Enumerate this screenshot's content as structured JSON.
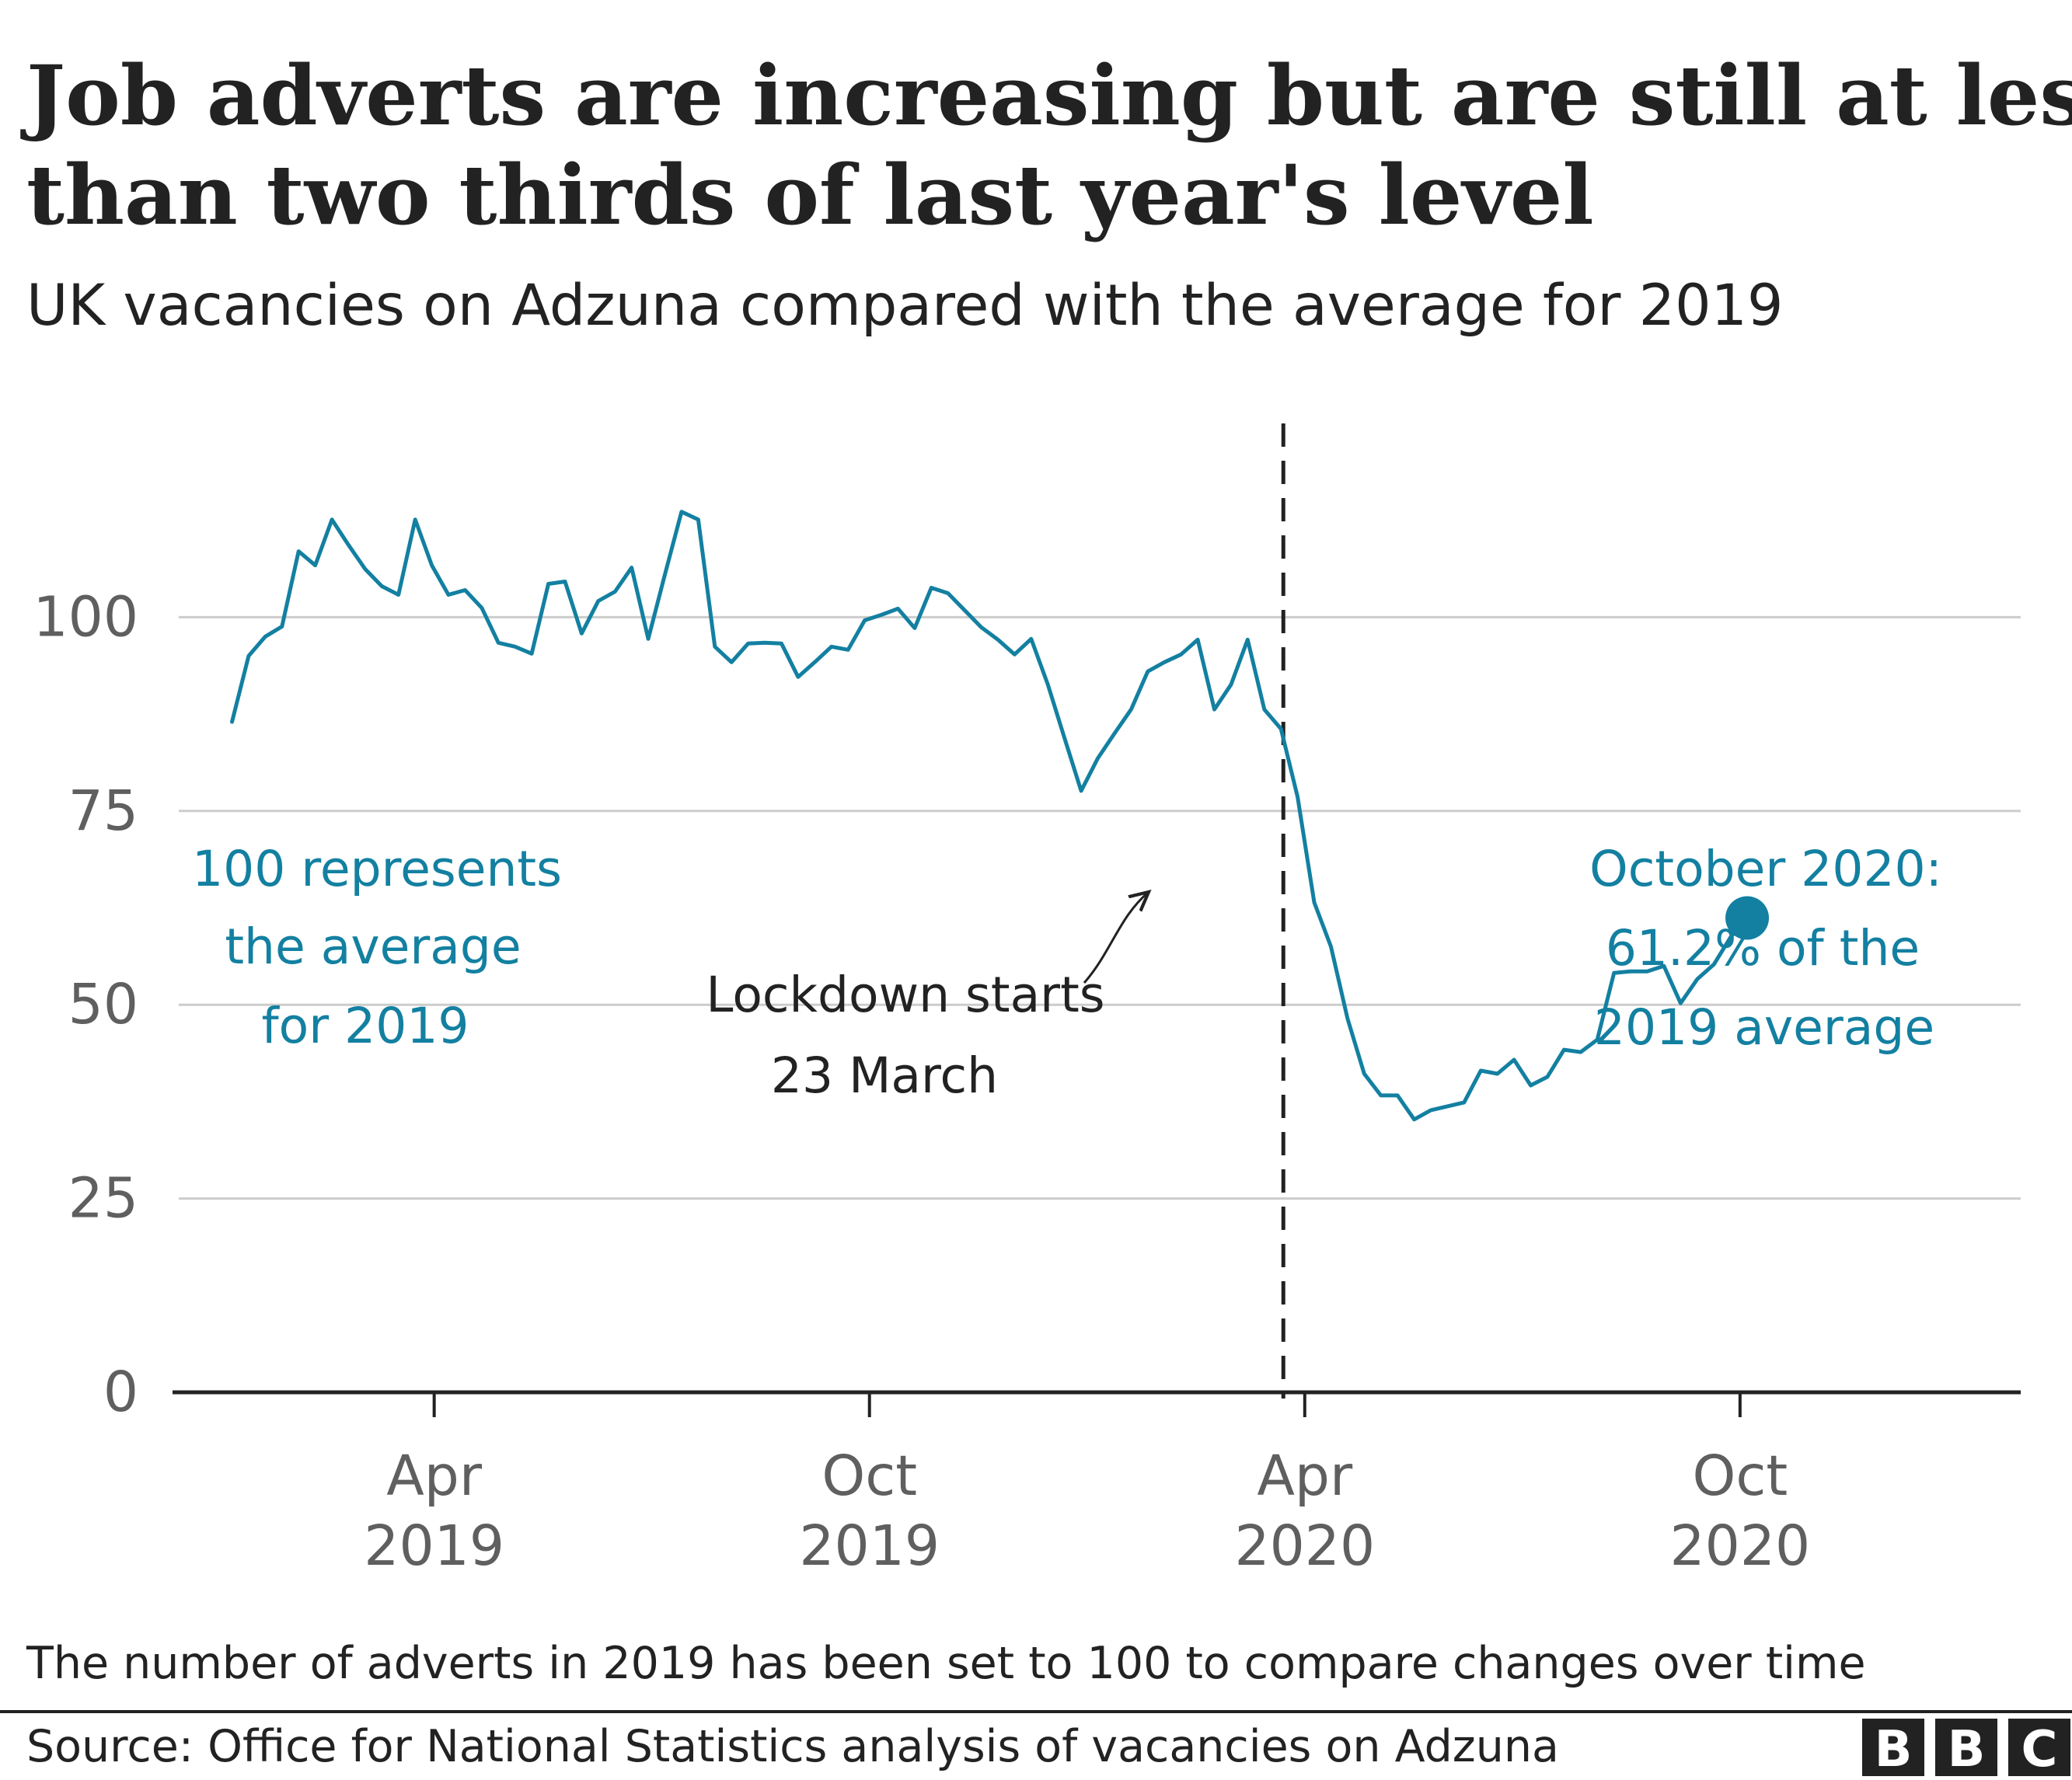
{
  "title_lines": [
    "Job adverts are increasing but are still at less",
    "than two thirds of last year's level"
  ],
  "subtitle": "UK vacancies on Adzuna compared with the average for 2019",
  "note": "The number of adverts in 2019 has been set to 100 to compare changes over time",
  "source": "Source: Office for National Statistics analysis of vacancies on Adzuna",
  "logo": [
    "B",
    "B",
    "C"
  ],
  "colors": {
    "line": "#1380a1",
    "grid": "#cccccc",
    "text": "#222222",
    "tick": "#5f5f5f"
  },
  "annotations": {
    "left": [
      "100 represents",
      "the average",
      "for 2019"
    ],
    "lockdown": [
      "Lockdown starts",
      "23 March"
    ],
    "right": [
      "October 2020:",
      "61.2% of the",
      "2019 average"
    ]
  },
  "chart_data": {
    "type": "line",
    "title": "Job adverts are increasing but are still at less than two thirds of last year's level",
    "subtitle": "UK vacancies on Adzuna compared with the average for 2019",
    "xlabel": "",
    "ylabel": "",
    "ylim": [
      0,
      125
    ],
    "yticks": [
      0,
      25,
      50,
      75,
      100
    ],
    "grid": true,
    "legend": "none",
    "xlim": [
      "2018-12-12",
      "2021-01-27"
    ],
    "xticks": [
      {
        "date": "2019-04-01",
        "label": [
          "Apr",
          "2019"
        ]
      },
      {
        "date": "2019-10-01",
        "label": [
          "Oct",
          "2019"
        ]
      },
      {
        "date": "2020-04-01",
        "label": [
          "Apr",
          "2020"
        ]
      },
      {
        "date": "2020-10-01",
        "label": [
          "Oct",
          "2020"
        ]
      }
    ],
    "lockdown_date": "2020-03-23",
    "series": [
      {
        "values": [
          {
            "x": "2019-01-06",
            "y": 86.5
          },
          {
            "x": "2019-01-13",
            "y": 95
          },
          {
            "x": "2019-01-20",
            "y": 97.5
          },
          {
            "x": "2019-01-27",
            "y": 98.8
          },
          {
            "x": "2019-02-03",
            "y": 108.5
          },
          {
            "x": "2019-02-10",
            "y": 106.7
          },
          {
            "x": "2019-02-17",
            "y": 112.6
          },
          {
            "x": "2019-02-24",
            "y": 109.3
          },
          {
            "x": "2019-03-03",
            "y": 106.2
          },
          {
            "x": "2019-03-10",
            "y": 104
          },
          {
            "x": "2019-03-17",
            "y": 102.9
          },
          {
            "x": "2019-03-24",
            "y": 112.6
          },
          {
            "x": "2019-03-31",
            "y": 106.7
          },
          {
            "x": "2019-04-07",
            "y": 102.9
          },
          {
            "x": "2019-04-14",
            "y": 103.5
          },
          {
            "x": "2019-04-21",
            "y": 101.2
          },
          {
            "x": "2019-04-28",
            "y": 96.7
          },
          {
            "x": "2019-05-05",
            "y": 96.2
          },
          {
            "x": "2019-05-12",
            "y": 95.3
          },
          {
            "x": "2019-05-19",
            "y": 104.3
          },
          {
            "x": "2019-05-26",
            "y": 104.6
          },
          {
            "x": "2019-06-02",
            "y": 97.9
          },
          {
            "x": "2019-06-09",
            "y": 102.1
          },
          {
            "x": "2019-06-16",
            "y": 103.3
          },
          {
            "x": "2019-06-23",
            "y": 106.4
          },
          {
            "x": "2019-06-30",
            "y": 97.2
          },
          {
            "x": "2019-07-07",
            "y": 105.5
          },
          {
            "x": "2019-07-14",
            "y": 113.6
          },
          {
            "x": "2019-07-21",
            "y": 112.6
          },
          {
            "x": "2019-07-28",
            "y": 96.2
          },
          {
            "x": "2019-08-04",
            "y": 94.2
          },
          {
            "x": "2019-08-11",
            "y": 96.6
          },
          {
            "x": "2019-08-18",
            "y": 96.7
          },
          {
            "x": "2019-08-25",
            "y": 96.6
          },
          {
            "x": "2019-09-01",
            "y": 92.3
          },
          {
            "x": "2019-09-08",
            "y": 94.2
          },
          {
            "x": "2019-09-15",
            "y": 96.2
          },
          {
            "x": "2019-09-22",
            "y": 95.8
          },
          {
            "x": "2019-09-29",
            "y": 99.6
          },
          {
            "x": "2019-10-06",
            "y": 100.3
          },
          {
            "x": "2019-10-13",
            "y": 101.1
          },
          {
            "x": "2019-10-20",
            "y": 98.6
          },
          {
            "x": "2019-10-27",
            "y": 103.8
          },
          {
            "x": "2019-11-03",
            "y": 103.1
          },
          {
            "x": "2019-11-10",
            "y": 100.9
          },
          {
            "x": "2019-11-17",
            "y": 98.7
          },
          {
            "x": "2019-11-24",
            "y": 97.1
          },
          {
            "x": "2019-12-01",
            "y": 95.2
          },
          {
            "x": "2019-12-08",
            "y": 97.2
          },
          {
            "x": "2019-12-15",
            "y": 91.3
          },
          {
            "x": "2019-12-22",
            "y": 84.4
          },
          {
            "x": "2019-12-29",
            "y": 77.6
          },
          {
            "x": "2020-01-05",
            "y": 81.8
          },
          {
            "x": "2020-01-12",
            "y": 85
          },
          {
            "x": "2020-01-19",
            "y": 88.1
          },
          {
            "x": "2020-01-26",
            "y": 93
          },
          {
            "x": "2020-02-02",
            "y": 94.2
          },
          {
            "x": "2020-02-09",
            "y": 95.2
          },
          {
            "x": "2020-02-16",
            "y": 97.1
          },
          {
            "x": "2020-02-23",
            "y": 88.1
          },
          {
            "x": "2020-03-01",
            "y": 91.3
          },
          {
            "x": "2020-03-08",
            "y": 97.1
          },
          {
            "x": "2020-03-15",
            "y": 88.1
          },
          {
            "x": "2020-03-22",
            "y": 85.6
          },
          {
            "x": "2020-03-29",
            "y": 76.8
          },
          {
            "x": "2020-04-05",
            "y": 63.2
          },
          {
            "x": "2020-04-12",
            "y": 57.5
          },
          {
            "x": "2020-04-19",
            "y": 48.2
          },
          {
            "x": "2020-04-26",
            "y": 41.1
          },
          {
            "x": "2020-05-03",
            "y": 38.3
          },
          {
            "x": "2020-05-10",
            "y": 38.3
          },
          {
            "x": "2020-05-17",
            "y": 35.2
          },
          {
            "x": "2020-05-24",
            "y": 36.4
          },
          {
            "x": "2020-05-31",
            "y": 36.9
          },
          {
            "x": "2020-06-07",
            "y": 37.4
          },
          {
            "x": "2020-06-14",
            "y": 41.5
          },
          {
            "x": "2020-06-21",
            "y": 41.1
          },
          {
            "x": "2020-06-28",
            "y": 42.9
          },
          {
            "x": "2020-07-05",
            "y": 39.6
          },
          {
            "x": "2020-07-12",
            "y": 40.7
          },
          {
            "x": "2020-07-19",
            "y": 44.2
          },
          {
            "x": "2020-07-26",
            "y": 43.9
          },
          {
            "x": "2020-08-02",
            "y": 45.5
          },
          {
            "x": "2020-08-09",
            "y": 54.1
          },
          {
            "x": "2020-08-16",
            "y": 54.3
          },
          {
            "x": "2020-08-23",
            "y": 54.3
          },
          {
            "x": "2020-08-30",
            "y": 55
          },
          {
            "x": "2020-09-06",
            "y": 50.2
          },
          {
            "x": "2020-09-13",
            "y": 53.3
          },
          {
            "x": "2020-09-20",
            "y": 55.2
          },
          {
            "x": "2020-09-27",
            "y": 58.7
          },
          {
            "x": "2020-10-04",
            "y": 61.2
          }
        ]
      }
    ]
  }
}
